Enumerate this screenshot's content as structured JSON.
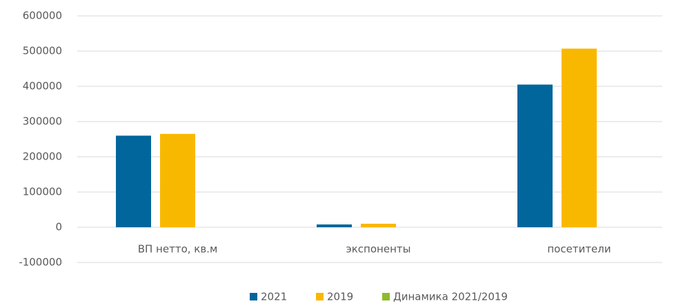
{
  "chart_data": {
    "type": "bar",
    "categories": [
      "ВП нетто, кв.м",
      "экспоненты",
      "посетители"
    ],
    "series": [
      {
        "name": "2021",
        "color": "#01669b",
        "values": [
          260000,
          8000,
          405000
        ]
      },
      {
        "name": "2019",
        "color": "#f9b800",
        "values": [
          265000,
          10000,
          507000
        ]
      },
      {
        "name": "Динамика 2021/2019",
        "color": "#8cbc2c",
        "values": [
          0,
          0,
          0
        ]
      }
    ],
    "ylim": [
      -100000,
      600000
    ],
    "yticks": [
      -100000,
      0,
      100000,
      200000,
      300000,
      400000,
      500000,
      600000
    ],
    "grid": true,
    "legend": "bottom"
  }
}
